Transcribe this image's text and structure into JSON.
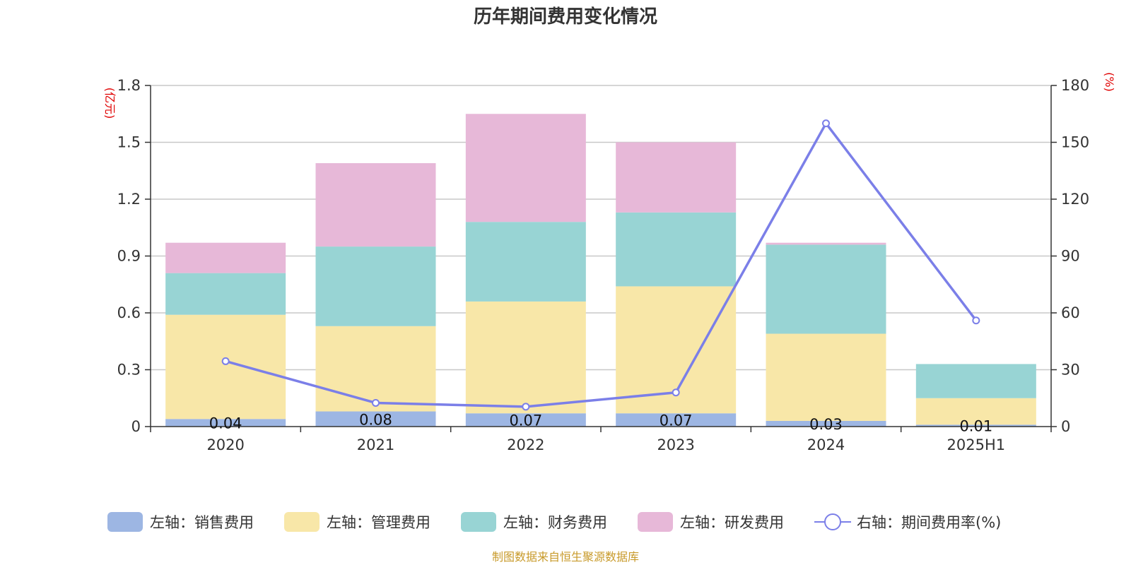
{
  "chart_data": {
    "type": "bar",
    "title": "历年期间费用变化情况",
    "categories": [
      "2020",
      "2021",
      "2022",
      "2023",
      "2024",
      "2025H1"
    ],
    "left_axis": {
      "unit": "(亿元)",
      "ylim": [
        0,
        1.8
      ],
      "ticks": [
        "0",
        "0.3",
        "0.6",
        "0.9",
        "1.2",
        "1.5",
        "1.8"
      ],
      "tick_values": [
        0,
        0.3,
        0.6,
        0.9,
        1.2,
        1.5,
        1.8
      ]
    },
    "right_axis": {
      "unit": "(%)",
      "ylim": [
        0,
        180
      ],
      "ticks": [
        "0",
        "30",
        "60",
        "90",
        "120",
        "150",
        "180"
      ],
      "tick_values": [
        0,
        30,
        60,
        90,
        120,
        150,
        180
      ]
    },
    "stacked": true,
    "grid": true,
    "legend_position": "bottom",
    "series": [
      {
        "name": "左轴：销售费用",
        "type": "bar",
        "axis": "left",
        "color": "#9db6e3",
        "values": [
          0.04,
          0.08,
          0.07,
          0.07,
          0.03,
          0.01
        ],
        "labels": [
          "0.04",
          "0.08",
          "0.07",
          "0.07",
          "0.03",
          "0.01"
        ]
      },
      {
        "name": "左轴：管理费用",
        "type": "bar",
        "axis": "left",
        "color": "#f8e7a8",
        "values": [
          0.55,
          0.45,
          0.59,
          0.67,
          0.46,
          0.14
        ]
      },
      {
        "name": "左轴：财务费用",
        "type": "bar",
        "axis": "left",
        "color": "#98d4d4",
        "values": [
          0.22,
          0.42,
          0.42,
          0.39,
          0.47,
          0.18
        ]
      },
      {
        "name": "左轴：研发费用",
        "type": "bar",
        "axis": "left",
        "color": "#e7b8d8",
        "values": [
          0.16,
          0.44,
          0.57,
          0.37,
          0.01,
          0
        ]
      },
      {
        "name": "右轴：期间费用率(%)",
        "type": "line",
        "axis": "right",
        "color": "#7b7fe8",
        "values": [
          34.5,
          12.5,
          10.5,
          18,
          160,
          56
        ]
      }
    ]
  },
  "source": "制图数据来自恒生聚源数据库"
}
